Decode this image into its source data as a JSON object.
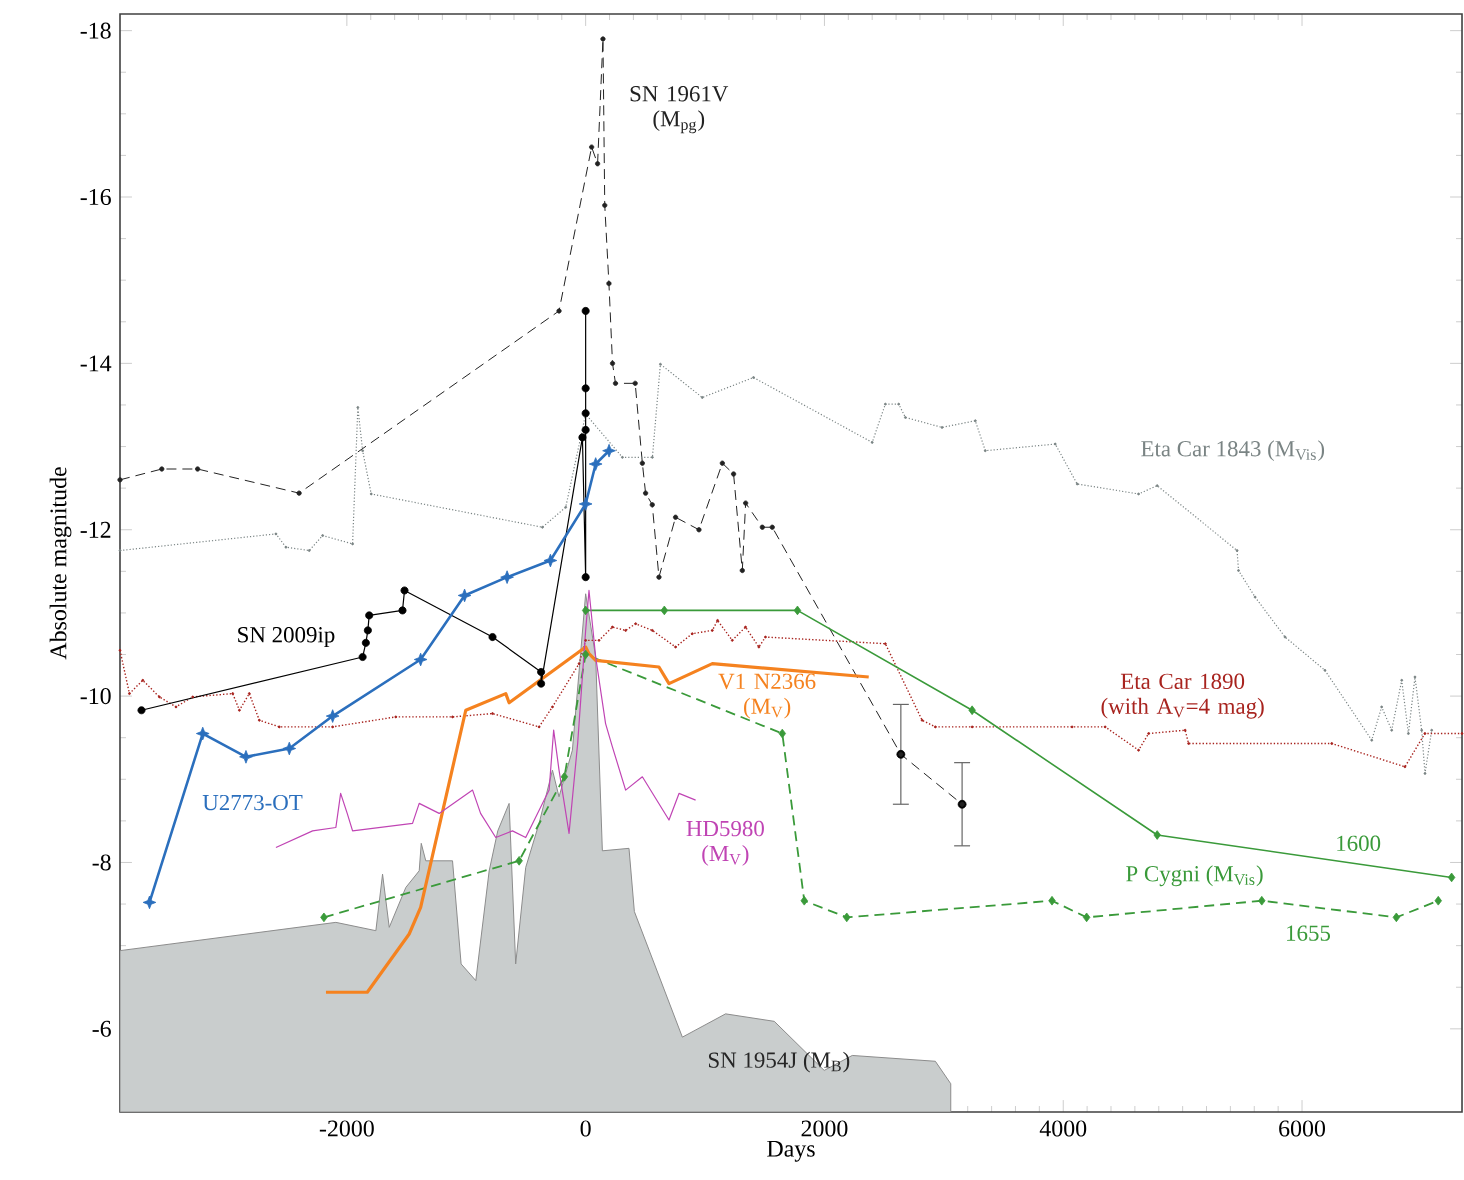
{
  "chart_data": {
    "type": "line",
    "xlabel": "Days",
    "ylabel": "Absolute magnitude",
    "xlim": [
      -3900,
      7340
    ],
    "ylim": [
      -5,
      -18.2
    ],
    "xticks": [
      -2000,
      0,
      2000,
      4000,
      6000
    ],
    "yticks": [
      -6,
      -8,
      -10,
      -12,
      -14,
      -16,
      -18
    ],
    "annotations": [
      "P Cygni (M$_{Vis}$)"
    ],
    "series": [
      {
        "name": "SN 1961V (M$_{pg}$)",
        "color": "#222222",
        "line_style": "dashed",
        "marker": "circle",
        "x": [
          -3900,
          -3550,
          -3250,
          -2400,
          -223,
          50,
          100,
          145,
          160,
          195,
          225,
          250,
          415,
          475,
          502,
          558,
          614,
          753,
          949,
          1145,
          1239,
          1312,
          1340,
          1480,
          1563,
          2640,
          3153
        ],
        "values": [
          -12.6,
          -12.73,
          -12.73,
          -12.44,
          -14.63,
          -16.6,
          -16.4,
          -17.9,
          -15.9,
          -14.96,
          -14.0,
          -13.76,
          -13.76,
          -12.8,
          -12.44,
          -12.3,
          -11.43,
          -12.15,
          -12.0,
          -12.8,
          -12.67,
          -11.51,
          -12.32,
          -12.03,
          -12.03,
          -9.3,
          -8.7
        ],
        "errors": [
          null,
          null,
          null,
          null,
          null,
          null,
          null,
          null,
          null,
          null,
          null,
          null,
          null,
          null,
          null,
          null,
          null,
          null,
          null,
          null,
          null,
          null,
          null,
          null,
          null,
          0.6,
          0.5
        ]
      },
      {
        "name": "Eta Car 1843 (M$_{Vis}$)",
        "color": "#7a8484",
        "line_style": "dotted",
        "marker": "circle",
        "x": [
          -3900,
          -2594,
          -2510,
          -2315,
          -2203,
          -1952,
          -1908,
          -1868,
          -1796,
          -362,
          -167,
          0,
          308,
          559,
          626,
          977,
          1406,
          2400,
          2510,
          2622,
          2678,
          2985,
          3264,
          3347,
          3933,
          4117,
          4631,
          4787,
          5456,
          5468,
          5607,
          5858,
          6192,
          6584,
          6667,
          6751,
          6835,
          6891,
          6946,
          7002,
          7030,
          7086
        ],
        "values": [
          -11.75,
          -11.95,
          -11.79,
          -11.75,
          -11.93,
          -11.83,
          -13.47,
          -12.95,
          -12.43,
          -12.03,
          -12.27,
          -13.39,
          -12.87,
          -12.87,
          -13.99,
          -13.59,
          -13.83,
          -13.05,
          -13.51,
          -13.51,
          -13.35,
          -13.23,
          -13.31,
          -12.95,
          -13.03,
          -12.55,
          -12.43,
          -12.53,
          -11.75,
          -11.51,
          -11.19,
          -10.71,
          -10.31,
          -9.47,
          -9.87,
          -9.59,
          -10.19,
          -9.55,
          -10.23,
          -9.59,
          -9.07,
          -9.59
        ]
      },
      {
        "name": "Eta Car 1890 (with A$_{V}$=4 mag)",
        "color": "#a8231e",
        "line_style": "dotted",
        "marker": "circle",
        "x": [
          -3900,
          -3821,
          -3709,
          -3570,
          -3431,
          -3291,
          -2956,
          -2900,
          -2817,
          -2733,
          -2566,
          -2119,
          -1590,
          -1115,
          -780,
          -390,
          -278,
          -55,
          0,
          112,
          224,
          335,
          419,
          559,
          753,
          893,
          1061,
          1105,
          1228,
          1339,
          1451,
          1506,
          2510,
          2818,
          2929,
          3237,
          4074,
          4351,
          4631,
          4715,
          5021,
          5050,
          6249,
          6862,
          7029,
          7340
        ],
        "values": [
          -10.55,
          -10.03,
          -10.19,
          -9.99,
          -9.87,
          -9.99,
          -10.03,
          -9.83,
          -10.03,
          -9.71,
          -9.63,
          -9.63,
          -9.75,
          -9.75,
          -9.79,
          -9.63,
          -9.87,
          -10.39,
          -10.67,
          -10.67,
          -10.83,
          -10.79,
          -10.87,
          -10.79,
          -10.59,
          -10.75,
          -10.79,
          -10.91,
          -10.67,
          -10.83,
          -10.59,
          -10.71,
          -10.63,
          -9.71,
          -9.63,
          -9.63,
          -9.63,
          -9.63,
          -9.35,
          -9.55,
          -9.59,
          -9.43,
          -9.43,
          -9.15,
          -9.55,
          -9.55
        ]
      },
      {
        "name": "1600",
        "color": "#3a9a3a",
        "line_style": "solid",
        "marker": "diamond",
        "x": [
          0,
          659,
          1774,
          3237,
          4787,
          7253
        ],
        "values": [
          -11.03,
          -11.03,
          -11.03,
          -9.83,
          -8.33,
          -7.82
        ]
      },
      {
        "name": "1655",
        "color": "#3a9a3a",
        "line_style": "dashed",
        "marker": "diamond",
        "x": [
          -2192,
          -557,
          -178,
          0,
          1647,
          1831,
          2187,
          3906,
          4196,
          5663,
          6790,
          7141
        ],
        "values": [
          -7.34,
          -8.02,
          -9.03,
          -10.5,
          -9.55,
          -7.54,
          -7.34,
          -7.54,
          -7.34,
          -7.54,
          -7.34,
          -7.54
        ]
      },
      {
        "name": "V1 N2366 (M$_{V}$)",
        "color": "#f5821f",
        "line_style": "solid",
        "marker": "none",
        "x": [
          -2175,
          -1829,
          -1478,
          -1382,
          -1004,
          -669,
          -641,
          0,
          28,
          84,
          614,
          698,
          1061,
          2371
        ],
        "values": [
          -6.44,
          -6.44,
          -7.14,
          -7.46,
          -9.83,
          -10.03,
          -9.92,
          -10.59,
          -10.51,
          -10.43,
          -10.35,
          -10.15,
          -10.39,
          -10.23
        ]
      },
      {
        "name": "HD5980 (M$_{V}$)",
        "color": "#c044b4",
        "line_style": "solid",
        "marker": "none",
        "x": [
          -2594,
          -2287,
          -2092,
          -2052,
          -1997,
          -1952,
          -1450,
          -1394,
          -1227,
          -947,
          -880,
          -753,
          -613,
          -502,
          -306,
          -268,
          -223,
          -139,
          -67,
          0,
          28,
          84,
          167,
          224,
          335,
          475,
          698,
          782,
          921
        ],
        "values": [
          -8.18,
          -8.38,
          -8.42,
          -8.83,
          -8.59,
          -8.38,
          -8.47,
          -8.71,
          -8.59,
          -8.87,
          -8.59,
          -8.3,
          -8.38,
          -8.3,
          -8.87,
          -9.59,
          -9.11,
          -8.35,
          -9.43,
          -10.79,
          -11.27,
          -10.47,
          -9.67,
          -9.39,
          -8.87,
          -9.03,
          -8.51,
          -8.83,
          -8.75
        ]
      },
      {
        "name": "SN 1954J (M$_{B}$)",
        "type": "area",
        "color": "#c9cdcd",
        "line_style": "solid",
        "marker": "none",
        "x": [
          -3900,
          -2092,
          -1757,
          -1701,
          -1645,
          -1506,
          -1394,
          -1377,
          -1339,
          -1115,
          -1043,
          -920,
          -808,
          -736,
          -641,
          -586,
          -502,
          -390,
          -278,
          -223,
          -111,
          0,
          84,
          140,
          363,
          408,
          810,
          1172,
          1580,
          1998,
          2233,
          2929,
          3058
        ],
        "values": [
          -6.94,
          -7.28,
          -7.18,
          -7.86,
          -7.22,
          -7.7,
          -7.9,
          -8.23,
          -8.02,
          -8.02,
          -6.78,
          -6.58,
          -7.9,
          -8.38,
          -8.71,
          -6.78,
          -7.94,
          -8.47,
          -9.11,
          -8.79,
          -9.35,
          -11.23,
          -10.47,
          -8.14,
          -8.17,
          -7.41,
          -5.9,
          -6.18,
          -6.09,
          -5.5,
          -5.68,
          -5.61,
          -5.34
        ]
      },
      {
        "name": "SN 2009ip",
        "color": "#000000",
        "line_style": "solid",
        "marker": "circle",
        "x": [
          -3720,
          -1868,
          -1841,
          -1824,
          -1813,
          -1534,
          -1517,
          -780,
          -373,
          -373,
          -27,
          0,
          0,
          0,
          0,
          0
        ],
        "values": [
          -9.83,
          -10.47,
          -10.64,
          -10.79,
          -10.97,
          -11.03,
          -11.27,
          -10.71,
          -10.29,
          -10.15,
          -13.11,
          -11.43,
          -13.2,
          -13.4,
          -13.7,
          -14.63
        ]
      },
      {
        "name": "U2773-OT",
        "color": "#2b6fbd",
        "line_style": "solid",
        "marker": "star",
        "x": [
          -3653,
          -3207,
          -2845,
          -2482,
          -2119,
          -1382,
          -1014,
          -658,
          -295,
          0,
          84,
          196
        ],
        "values": [
          -7.52,
          -9.55,
          -9.27,
          -9.37,
          -9.76,
          -10.44,
          -11.21,
          -11.43,
          -11.63,
          -12.31,
          -12.79,
          -12.95
        ]
      }
    ]
  }
}
